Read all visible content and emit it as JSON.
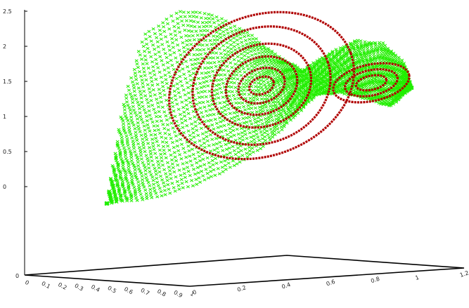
{
  "chart_data": {
    "type": "surface3d",
    "title": "",
    "z_ticks": [
      "0",
      "0.5",
      "1",
      "1.5",
      "2",
      "2.5"
    ],
    "z_range": [
      0,
      2.5
    ],
    "floor_z_tick": "0",
    "x_ticks": [
      "0",
      "0.1",
      "0.2",
      "0.3",
      "0.4",
      "0.5",
      "0.6",
      "0.7",
      "0.8",
      "0.9",
      "1"
    ],
    "y_ticks": [
      "0",
      "0.2",
      "0.4",
      "0.6",
      "0.8",
      "1",
      "1.2"
    ],
    "series": [
      {
        "color": "#22ee00"
      },
      {
        "color": "#b00000"
      }
    ]
  }
}
